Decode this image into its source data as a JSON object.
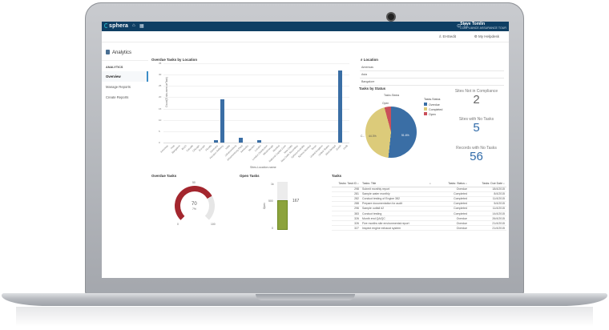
{
  "app": {
    "brand": "sphera",
    "user_name": "Steve Tomlin",
    "user_team": "COMPLIANCE ASSURANCE TOUR",
    "subbar": {
      "user_link": "EHSedit",
      "helpdesk": "My Helpdesk"
    },
    "icons": [
      "home-icon",
      "grid-icon",
      "help-icon",
      "user-icon",
      "person-icon",
      "gear-icon"
    ]
  },
  "sidebar": {
    "title": "Analytics",
    "section": "ANALYTICS",
    "items": [
      {
        "label": "Overview",
        "active": true
      },
      {
        "label": "Manage Reports",
        "active": false
      },
      {
        "label": "Create Reports",
        "active": false
      }
    ]
  },
  "overdue_by_location": {
    "title": "Overdue Tasks by Location",
    "ylabel": "Count(Tasks.overdueTask)",
    "xlabel": "Sites.Location.name",
    "ticks": [
      "35",
      "30",
      "25",
      "20",
      "15",
      "10",
      "5",
      "0"
    ]
  },
  "location_filter": {
    "title": "Location",
    "items": [
      "Americas",
      "Asia",
      "Bangalore"
    ]
  },
  "tasks_by_status": {
    "title": "Tasks by Status",
    "subtitle": "Tasks.Status",
    "legend_title": "Tasks.Status",
    "legend": [
      {
        "label": "Overdue",
        "color": "#3a6ea5"
      },
      {
        "label": "Completed",
        "color": "#dccb7a"
      },
      {
        "label": "Open",
        "color": "#c94f5a"
      }
    ],
    "labels": {
      "overdue": "51.6%",
      "completed": "44.3%",
      "open": "Open",
      "c": "C..."
    }
  },
  "kpis": [
    {
      "title": "Sites Not in Compliance",
      "value": "2",
      "color": "#666666"
    },
    {
      "title": "Sites with No Tasks",
      "value": "5",
      "color": "#2f6aa8"
    },
    {
      "title": "Records with No Tasks",
      "value": "56",
      "color": "#2f6aa8"
    }
  ],
  "overdue_tasks": {
    "title": "Overdue Tasks",
    "value": "70",
    "sub": "7%",
    "min": "0",
    "mid": "50",
    "max": "100"
  },
  "open_tasks": {
    "title": "Open Tasks",
    "value": "167",
    "ticks": [
      "1k",
      "500",
      "0"
    ],
    "ylabel": "Open"
  },
  "tasks_table": {
    "title": "Tasks",
    "columns": [
      "Tasks: Task ID",
      "Tasks: Title",
      "Tasks: Status",
      "Tasks: Due Date"
    ],
    "rows": [
      [
        "298",
        "Submit monthly report",
        "Overdue",
        "18/4/2015"
      ],
      [
        "281",
        "Sample water monthly",
        "Completed",
        "8/4/2015"
      ],
      [
        "282",
        "Conduct testing of Engine 382",
        "Completed",
        "11/4/2015"
      ],
      [
        "288",
        "Prepare documentation for audit",
        "Completed",
        "5/4/2015"
      ],
      [
        "296",
        "Sample outfall #2",
        "Completed",
        "11/4/2015"
      ],
      [
        "383",
        "Conduct testing",
        "Completed",
        "14/4/2015"
      ],
      [
        "326",
        "Month end QA/QC",
        "Overdue",
        "26/4/2015"
      ],
      [
        "326",
        "Five months site environmental report",
        "Overdue",
        "21/4/2015"
      ],
      [
        "327",
        "Inspect engine exhaust system",
        "Overdue",
        "21/4/2015"
      ]
    ]
  },
  "chart_data": [
    {
      "type": "bar",
      "title": "Overdue Tasks by Location",
      "xlabel": "Sites.Location.name",
      "ylabel": "Count(Tasks.overdueTask)",
      "ylim": [
        0,
        35
      ],
      "categories": [
        "Americas",
        "Asia",
        "Bangalore",
        "BGCI",
        "Canada",
        "Chicago",
        "Europe",
        "Florida",
        "Germany",
        "Houston Refinery",
        "India",
        "Johannesburg",
        "Johannesburg Plant",
        "Kentucky",
        "Mexico",
        "London",
        "London Distribution",
        "Mississauga",
        "Mumbai",
        "National Capital Zone",
        "New Delhi",
        "New Delhi Secondary",
        "Sphera Australia",
        "Sphera Mumbai",
        "Texas",
        "United Kingdom",
        "United States",
        "West Bengal",
        "Zurich",
        "(null)"
      ],
      "values": [
        0,
        0,
        0,
        0,
        0,
        0,
        0,
        0,
        1,
        19,
        0,
        0,
        2,
        0,
        0,
        1,
        0,
        0,
        0,
        0,
        0,
        0,
        0,
        0,
        0,
        0,
        0,
        0,
        32,
        0
      ]
    },
    {
      "type": "pie",
      "title": "Tasks by Status",
      "categories": [
        "Overdue",
        "Completed",
        "Open"
      ],
      "values": [
        51.6,
        44.3,
        4.1
      ]
    }
  ]
}
